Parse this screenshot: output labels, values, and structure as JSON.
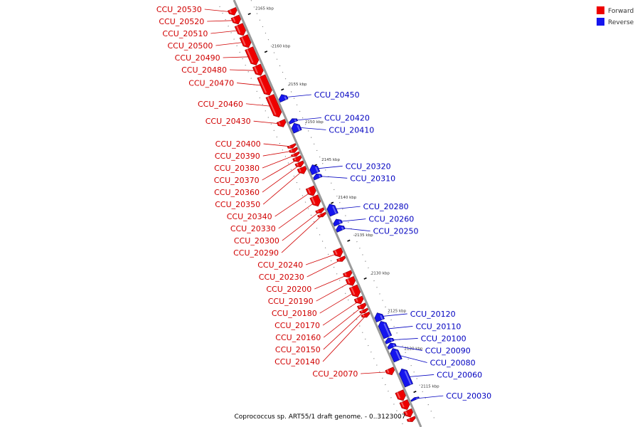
{
  "colors": {
    "forward": "#ee0000",
    "forward_dark": "#990000",
    "reverse": "#1515ee",
    "reverse_dark": "#00007a",
    "backbone": "#9a9a9a",
    "label_forward": "#d00000",
    "label_reverse": "#0000c0"
  },
  "legend": {
    "forward_label": "Forward",
    "reverse_label": "Reverse"
  },
  "caption": "Coprococcus sp. ART55/1 draft genome. - 0..3123007",
  "axis": {
    "unit": "kbp",
    "ticks": [
      2165,
      2160,
      2155,
      2150,
      2145,
      2140,
      2135,
      2130,
      2125,
      2120,
      2115
    ]
  },
  "genes": [
    {
      "id": "CCU_20530",
      "strand": "forward",
      "start_kbp": 2166.4,
      "end_kbp": 2165.6
    },
    {
      "id": "CCU_20520",
      "strand": "forward",
      "start_kbp": 2165.4,
      "end_kbp": 2164.4
    },
    {
      "id": "CCU_20510",
      "strand": "forward",
      "start_kbp": 2164.3,
      "end_kbp": 2162.9
    },
    {
      "id": "CCU_20500",
      "strand": "forward",
      "start_kbp": 2162.8,
      "end_kbp": 2161.3
    },
    {
      "id": "CCU_20490",
      "strand": "forward",
      "start_kbp": 2161.2,
      "end_kbp": 2159.0
    },
    {
      "id": "CCU_20480",
      "strand": "forward",
      "start_kbp": 2158.9,
      "end_kbp": 2157.6
    },
    {
      "id": "CCU_20470",
      "strand": "forward",
      "start_kbp": 2157.5,
      "end_kbp": 2155.0
    },
    {
      "id": "CCU_20460",
      "strand": "forward",
      "start_kbp": 2154.9,
      "end_kbp": 2152.1
    },
    {
      "id": "CCU_20450",
      "strand": "reverse",
      "start_kbp": 2154.5,
      "end_kbp": 2153.7
    },
    {
      "id": "CCU_20430",
      "strand": "forward",
      "start_kbp": 2151.6,
      "end_kbp": 2150.8
    },
    {
      "id": "CCU_20420",
      "strand": "reverse",
      "start_kbp": 2151.3,
      "end_kbp": 2150.8
    },
    {
      "id": "CCU_20410",
      "strand": "reverse",
      "start_kbp": 2150.7,
      "end_kbp": 2149.6
    },
    {
      "id": "CCU_20400",
      "strand": "forward",
      "start_kbp": 2148.4,
      "end_kbp": 2148.0
    },
    {
      "id": "CCU_20390",
      "strand": "forward",
      "start_kbp": 2147.9,
      "end_kbp": 2147.4
    },
    {
      "id": "CCU_20380",
      "strand": "forward",
      "start_kbp": 2147.3,
      "end_kbp": 2146.9
    },
    {
      "id": "CCU_20370",
      "strand": "forward",
      "start_kbp": 2146.8,
      "end_kbp": 2146.2
    },
    {
      "id": "CCU_20360",
      "strand": "forward",
      "start_kbp": 2146.1,
      "end_kbp": 2145.5
    },
    {
      "id": "CCU_20350",
      "strand": "forward",
      "start_kbp": 2145.4,
      "end_kbp": 2144.6
    },
    {
      "id": "CCU_20320",
      "strand": "reverse",
      "start_kbp": 2145.2,
      "end_kbp": 2144.1
    },
    {
      "id": "CCU_20310",
      "strand": "reverse",
      "start_kbp": 2144.0,
      "end_kbp": 2143.4
    },
    {
      "id": "CCU_20340",
      "strand": "forward",
      "start_kbp": 2142.8,
      "end_kbp": 2141.7
    },
    {
      "id": "CCU_20330",
      "strand": "forward",
      "start_kbp": 2141.6,
      "end_kbp": 2140.3
    },
    {
      "id": "CCU_20280",
      "strand": "reverse",
      "start_kbp": 2140.0,
      "end_kbp": 2138.6
    },
    {
      "id": "CCU_20300",
      "strand": "forward",
      "start_kbp": 2139.9,
      "end_kbp": 2139.4
    },
    {
      "id": "CCU_20290",
      "strand": "forward",
      "start_kbp": 2139.3,
      "end_kbp": 2138.9
    },
    {
      "id": "CCU_20260",
      "strand": "reverse",
      "start_kbp": 2138.0,
      "end_kbp": 2137.3
    },
    {
      "id": "CCU_20250",
      "strand": "reverse",
      "start_kbp": 2137.2,
      "end_kbp": 2136.5
    },
    {
      "id": "CCU_20240",
      "strand": "forward",
      "start_kbp": 2134.6,
      "end_kbp": 2133.6
    },
    {
      "id": "CCU_20230",
      "strand": "forward",
      "start_kbp": 2133.5,
      "end_kbp": 2133.0
    },
    {
      "id": "CCU_20200",
      "strand": "forward",
      "start_kbp": 2131.6,
      "end_kbp": 2130.9
    },
    {
      "id": "CCU_20190",
      "strand": "forward",
      "start_kbp": 2130.8,
      "end_kbp": 2129.8
    },
    {
      "id": "CCU_20180",
      "strand": "forward",
      "start_kbp": 2129.7,
      "end_kbp": 2128.3
    },
    {
      "id": "CCU_20170",
      "strand": "forward",
      "start_kbp": 2128.2,
      "end_kbp": 2127.4
    },
    {
      "id": "CCU_20160",
      "strand": "forward",
      "start_kbp": 2127.3,
      "end_kbp": 2126.7
    },
    {
      "id": "CCU_20150",
      "strand": "forward",
      "start_kbp": 2126.6,
      "end_kbp": 2126.2
    },
    {
      "id": "CCU_20140",
      "strand": "forward",
      "start_kbp": 2126.1,
      "end_kbp": 2125.6
    },
    {
      "id": "CCU_20120",
      "strand": "reverse",
      "start_kbp": 2125.6,
      "end_kbp": 2124.6
    },
    {
      "id": "CCU_20110",
      "strand": "reverse",
      "start_kbp": 2124.5,
      "end_kbp": 2122.4
    },
    {
      "id": "CCU_20100",
      "strand": "reverse",
      "start_kbp": 2122.3,
      "end_kbp": 2121.7
    },
    {
      "id": "CCU_20090",
      "strand": "reverse",
      "start_kbp": 2121.6,
      "end_kbp": 2121.0
    },
    {
      "id": "CCU_20080",
      "strand": "reverse",
      "start_kbp": 2120.9,
      "end_kbp": 2119.3
    },
    {
      "id": "CCU_20060",
      "strand": "reverse",
      "start_kbp": 2118.2,
      "end_kbp": 2116.0
    },
    {
      "id": "CCU_20070",
      "strand": "forward",
      "start_kbp": 2118.8,
      "end_kbp": 2118.0
    },
    {
      "id": "CCU_20030",
      "strand": "reverse",
      "start_kbp": 2114.4,
      "end_kbp": 2114.1
    },
    {
      "id": "",
      "strand": "forward",
      "start_kbp": 2115.8,
      "end_kbp": 2114.6
    },
    {
      "id": "",
      "strand": "forward",
      "start_kbp": 2114.5,
      "end_kbp": 2113.4
    },
    {
      "id": "",
      "strand": "forward",
      "start_kbp": 2113.3,
      "end_kbp": 2112.4
    },
    {
      "id": "",
      "strand": "forward",
      "start_kbp": 2112.3,
      "end_kbp": 2111.8
    }
  ]
}
